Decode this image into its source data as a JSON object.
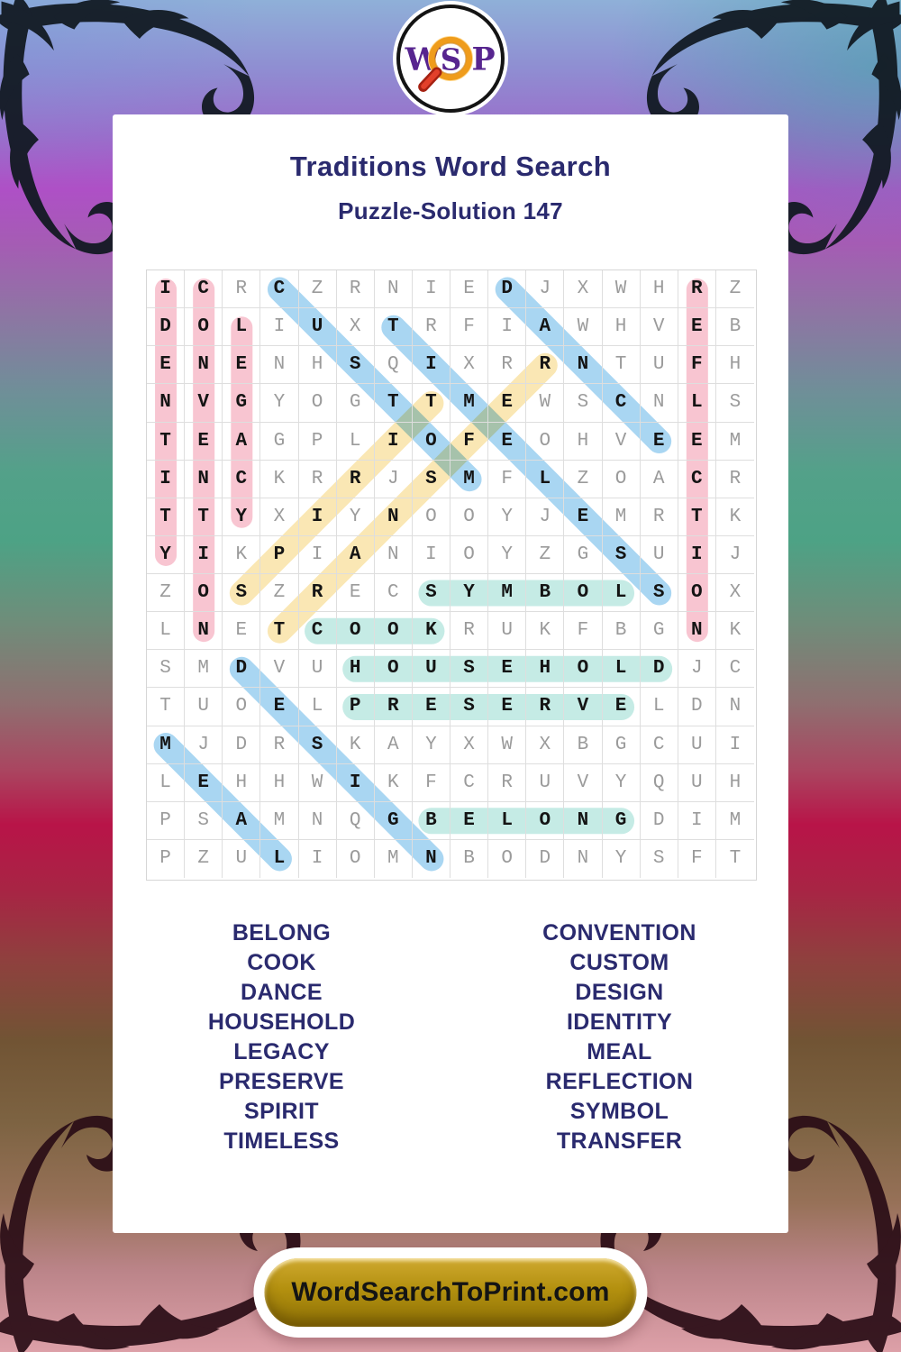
{
  "logo": {
    "w": "W",
    "s": "S",
    "p": "P"
  },
  "header": {
    "title": "Traditions Word Search",
    "subtitle": "Puzzle-Solution 147"
  },
  "grid": {
    "size": 16,
    "rows": [
      "ICRCZRNIEDJXWHRZ",
      "DOLIUXTRFIAWHVEB",
      "ENENHSQIXRRNTUFH",
      "NVGYOGTTMEWSCNLS",
      "TEAGPLIOFEOHVEEM",
      "INCKRRJSMFLZOACR",
      "TTYXIYNOOYJEMRTK",
      "YIKPIANIOYZGSUIJ",
      "ZOSZRECSYMBOLSOX",
      "LNETCOOKRUKFBGNK",
      "SMDVUHOUSEHOLDJC",
      "TUOELPRESERVELDN",
      "MJDRSKAYXWXBGCUI",
      "LEHHWIKFCRUVYQUH",
      "PSAMNQGBELONGDIM",
      "PZULIOMNBODNYSFT"
    ]
  },
  "highlight_colors": {
    "pink": "#f8c5d1",
    "blue": "#a9d6f2",
    "yellow": "#fae7b4",
    "teal": "#c5ebe5"
  },
  "colors": {
    "heading_text": "#2a2a6e",
    "letter_normal": "#9b9b9b",
    "letter_found": "#141414",
    "footer_gold": "#b3900f",
    "logo_purple": "#57258f",
    "magnifier_orange": "#ef9c1c",
    "magnifier_handle_red": "#cf2c18"
  },
  "words": [
    {
      "text": "IDENTITY",
      "row": 1,
      "col": 1,
      "dr": 1,
      "dc": 0,
      "color": "pink"
    },
    {
      "text": "CONVENTION",
      "row": 1,
      "col": 2,
      "dr": 1,
      "dc": 0,
      "color": "pink"
    },
    {
      "text": "LEGACY",
      "row": 2,
      "col": 3,
      "dr": 1,
      "dc": 0,
      "color": "pink"
    },
    {
      "text": "REFLECTION",
      "row": 1,
      "col": 15,
      "dr": 1,
      "dc": 0,
      "color": "pink"
    },
    {
      "text": "CUSTOM",
      "row": 1,
      "col": 4,
      "dr": 1,
      "dc": 1,
      "color": "blue"
    },
    {
      "text": "DANCE",
      "row": 1,
      "col": 10,
      "dr": 1,
      "dc": 1,
      "color": "blue"
    },
    {
      "text": "TIMELESS",
      "row": 2,
      "col": 7,
      "dr": 1,
      "dc": 1,
      "color": "blue"
    },
    {
      "text": "DESIGN",
      "row": 11,
      "col": 3,
      "dr": 1,
      "dc": 1,
      "color": "blue"
    },
    {
      "text": "MEAL",
      "row": 13,
      "col": 1,
      "dr": 1,
      "dc": 1,
      "color": "blue"
    },
    {
      "text": "SPIRIT",
      "row": 9,
      "col": 3,
      "dr": -1,
      "dc": 1,
      "color": "yellow"
    },
    {
      "text": "TRANSFER",
      "row": 10,
      "col": 4,
      "dr": -1,
      "dc": 1,
      "color": "yellow"
    },
    {
      "text": "SYMBOL",
      "row": 9,
      "col": 8,
      "dr": 0,
      "dc": 1,
      "color": "teal"
    },
    {
      "text": "COOK",
      "row": 10,
      "col": 5,
      "dr": 0,
      "dc": 1,
      "color": "teal"
    },
    {
      "text": "HOUSEHOLD",
      "row": 11,
      "col": 6,
      "dr": 0,
      "dc": 1,
      "color": "teal"
    },
    {
      "text": "PRESERVE",
      "row": 12,
      "col": 6,
      "dr": 0,
      "dc": 1,
      "color": "teal"
    },
    {
      "text": "BELONG",
      "row": 15,
      "col": 8,
      "dr": 0,
      "dc": 1,
      "color": "teal"
    }
  ],
  "word_list": {
    "left": [
      "BELONG",
      "COOK",
      "DANCE",
      "HOUSEHOLD",
      "LEGACY",
      "PRESERVE",
      "SPIRIT",
      "TIMELESS"
    ],
    "right": [
      "CONVENTION",
      "CUSTOM",
      "DESIGN",
      "IDENTITY",
      "MEAL",
      "REFLECTION",
      "SYMBOL",
      "TRANSFER"
    ]
  },
  "footer": {
    "label": "WordSearchToPrint.com"
  }
}
